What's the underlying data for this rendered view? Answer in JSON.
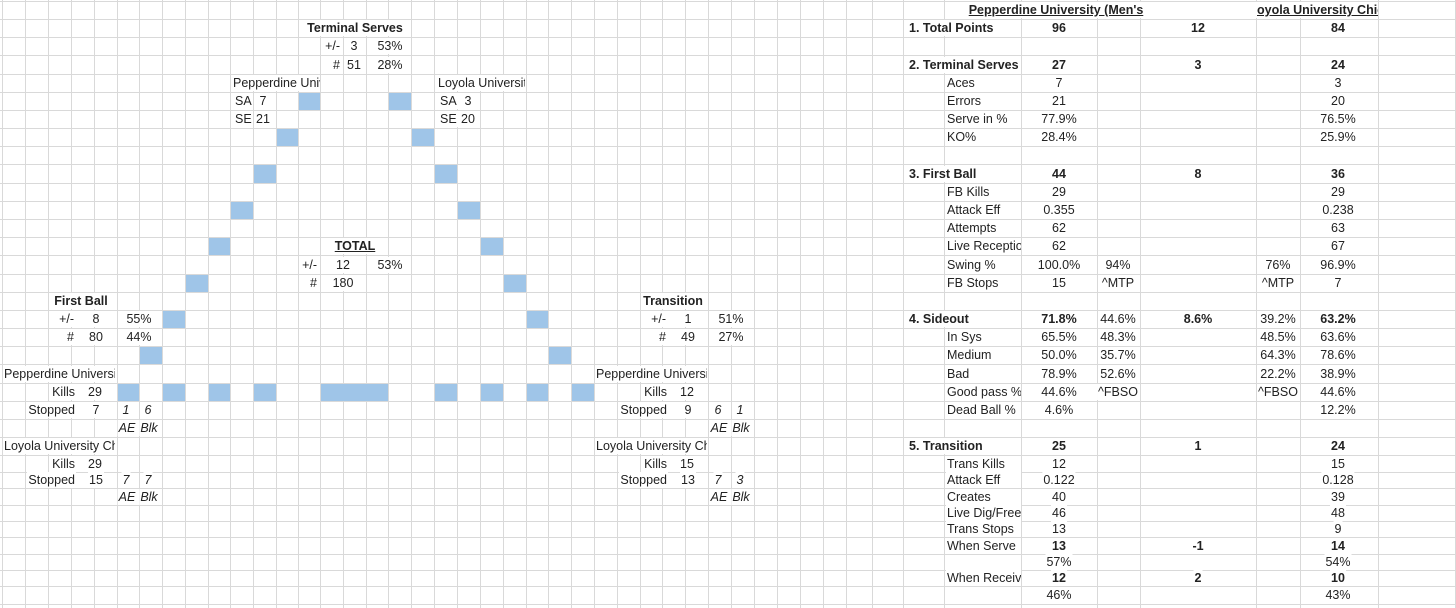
{
  "terminal_serves": {
    "title": "Terminal Serves",
    "plus_minus": {
      "label": "+/-",
      "value": 3,
      "pct": "53%"
    },
    "count": {
      "label": "#",
      "value": 51,
      "pct": "28%"
    },
    "teams": [
      {
        "name": "Pepperdine Univ",
        "rows": [
          {
            "label": "SA",
            "value": 7
          },
          {
            "label": "SE",
            "value": 21
          }
        ]
      },
      {
        "name": "Loyola Universit",
        "rows": [
          {
            "label": "SA",
            "value": 3
          },
          {
            "label": "SE",
            "value": 20
          }
        ]
      }
    ]
  },
  "total": {
    "title": "TOTAL",
    "plus_minus": {
      "label": "+/-",
      "value": 12,
      "pct": "53%"
    },
    "count": {
      "label": "#",
      "value": 180
    }
  },
  "first_ball": {
    "title": "First Ball",
    "plus_minus": {
      "label": "+/-",
      "value": 8,
      "pct": "55%"
    },
    "count": {
      "label": "#",
      "value": 80,
      "pct": "44%"
    },
    "teams": [
      {
        "name": "Pepperdine Universi",
        "kills_label": "Kills",
        "kills": 29,
        "stopped_label": "Stopped",
        "stopped": 7,
        "ae": 1,
        "blk": 6,
        "ae_label": "AE",
        "blk_label": "Blk"
      },
      {
        "name": "Loyola University Ch",
        "kills_label": "Kills",
        "kills": 29,
        "stopped_label": "Stopped",
        "stopped": 15,
        "ae": 7,
        "blk": 7,
        "ae_label": "AE",
        "blk_label": "Blk"
      }
    ]
  },
  "transition": {
    "title": "Transition",
    "plus_minus": {
      "label": "+/-",
      "value": 1,
      "pct": "51%"
    },
    "count": {
      "label": "#",
      "value": 49,
      "pct": "27%"
    },
    "teams": [
      {
        "name": "Pepperdine Universit",
        "kills_label": "Kills",
        "kills": 12,
        "stopped_label": "Stopped",
        "stopped": 9,
        "ae": 6,
        "blk": 1,
        "ae_label": "AE",
        "blk_label": "Blk"
      },
      {
        "name": "Loyola University Ch",
        "kills_label": "Kills",
        "kills": 15,
        "stopped_label": "Stopped",
        "stopped": 13,
        "ae": 7,
        "blk": 3,
        "ae_label": "AE",
        "blk_label": "Blk"
      }
    ]
  },
  "summary": {
    "headers": [
      "Pepperdine University (Men's",
      "oyola University Chicago (Men's)"
    ],
    "rows": [
      {
        "label": "1. Total Points",
        "pepperdine": 96,
        "difference": 12,
        "loyola": 84
      },
      {
        "label": "2. Terminal Serves",
        "pepperdine": 27,
        "difference": 3,
        "loyola": 24
      },
      {
        "label": "Aces",
        "pepperdine": 7,
        "loyola": 3
      },
      {
        "label": "Errors",
        "pepperdine": 21,
        "loyola": 20
      },
      {
        "label": "Serve in %",
        "pepperdine": "77.9%",
        "loyola": "76.5%"
      },
      {
        "label": "KO%",
        "pepperdine": "28.4%",
        "loyola": "25.9%"
      },
      {
        "label": "3. First Ball",
        "pepperdine": 44,
        "difference": 8,
        "loyola": 36
      },
      {
        "label": "FB Kills",
        "pepperdine": 29,
        "loyola": 29
      },
      {
        "label": "Attack Eff",
        "pepperdine": 0.355,
        "loyola": 0.238
      },
      {
        "label": "Attempts",
        "pepperdine": 62,
        "loyola": 63
      },
      {
        "label": "Live Receptio",
        "pepperdine": 62,
        "loyola": 67
      },
      {
        "label": "Swing %",
        "pepperdine": "100.0%",
        "pepperdine_note": "94%",
        "loyola_note": "76%",
        "loyola": "96.9%"
      },
      {
        "label": "FB Stops",
        "pepperdine": 15,
        "pepperdine_note": "^MTP",
        "loyola_note": "^MTP",
        "loyola": 7
      },
      {
        "label": "4. Sideout",
        "pepperdine": "71.8%",
        "pepperdine_note": "44.6%",
        "difference": "8.6%",
        "loyola_note": "39.2%",
        "loyola": "63.2%"
      },
      {
        "label": "In Sys",
        "pepperdine": "65.5%",
        "pepperdine_note": "48.3%",
        "loyola_note": "48.5%",
        "loyola": "63.6%"
      },
      {
        "label": "Medium",
        "pepperdine": "50.0%",
        "pepperdine_note": "35.7%",
        "loyola_note": "64.3%",
        "loyola": "78.6%"
      },
      {
        "label": "Bad",
        "pepperdine": "78.9%",
        "pepperdine_note": "52.6%",
        "loyola_note": "22.2%",
        "loyola": "38.9%"
      },
      {
        "label": "Good pass %",
        "pepperdine": "44.6%",
        "pepperdine_note": "^FBSO",
        "loyola_note": "^FBSO",
        "loyola": "44.6%"
      },
      {
        "label": "Dead Ball %",
        "pepperdine": "4.6%",
        "loyola": "12.2%"
      },
      {
        "label": "5. Transition",
        "pepperdine": 25,
        "difference": 1,
        "loyola": 24
      },
      {
        "label": "Trans Kills",
        "pepperdine": 12,
        "loyola": 15
      },
      {
        "label": "Attack Eff",
        "pepperdine": 0.122,
        "loyola": 0.128
      },
      {
        "label": "Creates",
        "pepperdine": 40,
        "loyola": 39
      },
      {
        "label": "Live Dig/Free",
        "pepperdine": 46,
        "loyola": 48
      },
      {
        "label": "Trans Stops",
        "pepperdine": 13,
        "loyola": 9
      },
      {
        "label": "When Serve",
        "pepperdine": 13,
        "difference": -1,
        "loyola": 14
      },
      {
        "pepperdine": "57%",
        "loyola": "54%"
      },
      {
        "label": "When Receive",
        "pepperdine": 12,
        "difference": 2,
        "loyola": 10
      },
      {
        "pepperdine": "46%",
        "loyola": "43%"
      }
    ]
  }
}
